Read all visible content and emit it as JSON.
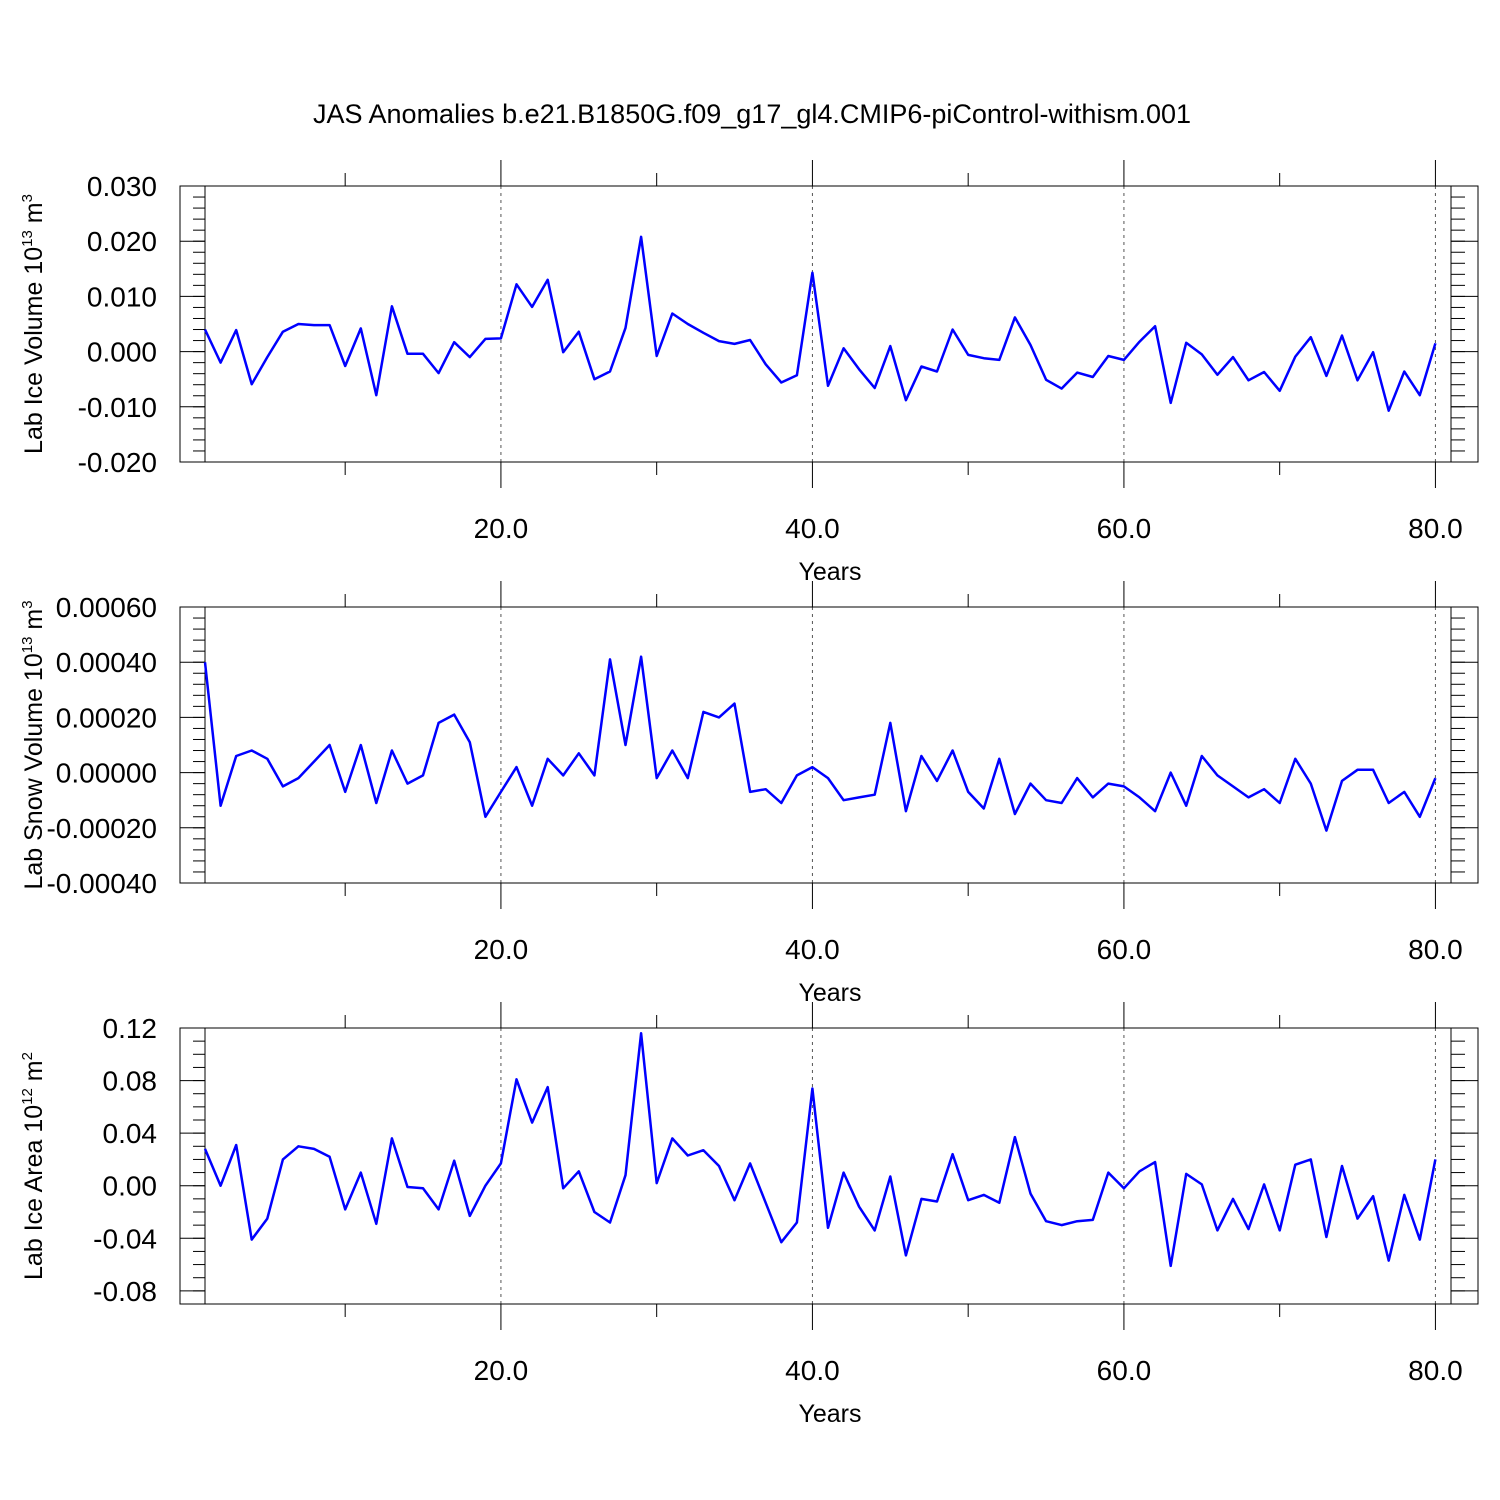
{
  "title": "JAS Anomalies b.e21.B1850G.f09_g17_gl4.CMIP6-piControl-withism.001",
  "colors": {
    "series": "#0000ff",
    "axes": "#000000",
    "grid": "#555555"
  },
  "chart_data": [
    {
      "type": "line",
      "ylabel": "Lab Ice Volume 10",
      "ylabel_exp": "13",
      "ylabel_unit": " m",
      "ylabel_unit_exp": "3",
      "xlabel": "Years",
      "xlim": [
        1,
        81
      ],
      "ylim": [
        -0.02,
        0.03
      ],
      "x_ticks": [
        20,
        40,
        60,
        80
      ],
      "x_tick_labels": [
        "20.0",
        "40.0",
        "60.0",
        "80.0"
      ],
      "y_ticks": [
        -0.02,
        -0.01,
        0.0,
        0.01,
        0.02,
        0.03
      ],
      "y_tick_labels": [
        "-0.020",
        "-0.010",
        "0.000",
        "0.010",
        "0.020",
        "0.030"
      ],
      "y_minor_step": 0.002,
      "grid": "x dashed at major ticks",
      "x_start": 1,
      "values": [
        0.004,
        -0.002,
        0.0039,
        -0.0059,
        -0.001,
        0.0036,
        0.005,
        0.0048,
        0.0048,
        -0.0026,
        0.0042,
        -0.0079,
        0.0082,
        -0.0004,
        -0.0004,
        -0.0039,
        0.0017,
        -0.001,
        0.0023,
        0.0024,
        0.0122,
        0.0081,
        0.013,
        -0.0001,
        0.0036,
        -0.005,
        -0.0036,
        0.0043,
        0.0208,
        -0.0008,
        0.0069,
        0.005,
        0.0034,
        0.0019,
        0.0014,
        0.0021,
        -0.0023,
        -0.0056,
        -0.0043,
        0.0143,
        -0.0062,
        0.0006,
        -0.0032,
        -0.0066,
        0.001,
        -0.0088,
        -0.0027,
        -0.0036,
        0.004,
        -0.0006,
        -0.0012,
        -0.0015,
        0.0062,
        0.0012,
        -0.0051,
        -0.0067,
        -0.0038,
        -0.0046,
        -0.0008,
        -0.0015,
        0.0018,
        0.0046,
        -0.0093,
        0.0016,
        -0.0005,
        -0.0042,
        -0.001,
        -0.0052,
        -0.0037,
        -0.0071,
        -0.0009,
        0.0026,
        -0.0044,
        0.0029,
        -0.0052,
        -0.0001,
        -0.0107,
        -0.0036,
        -0.0079,
        0.0015
      ]
    },
    {
      "type": "line",
      "ylabel": "Lab Snow Volume 10",
      "ylabel_exp": "13",
      "ylabel_unit": " m",
      "ylabel_unit_exp": "3",
      "xlabel": "Years",
      "xlim": [
        1,
        81
      ],
      "ylim": [
        -0.0004,
        0.0006
      ],
      "x_ticks": [
        20,
        40,
        60,
        80
      ],
      "x_tick_labels": [
        "20.0",
        "40.0",
        "60.0",
        "80.0"
      ],
      "y_ticks": [
        -0.0004,
        -0.0002,
        0.0,
        0.0002,
        0.0004,
        0.0006
      ],
      "y_tick_labels": [
        "-0.00040",
        "-0.00020",
        "0.00000",
        "0.00020",
        "0.00040",
        "0.00060"
      ],
      "y_minor_step": 4e-05,
      "grid": "x dashed at major ticks",
      "x_start": 1,
      "values": [
        0.0004,
        -0.00012,
        6e-05,
        8e-05,
        5e-05,
        -5e-05,
        -2e-05,
        4e-05,
        0.0001,
        -7e-05,
        0.0001,
        -0.00011,
        8e-05,
        -4e-05,
        -1e-05,
        0.00018,
        0.00021,
        0.00011,
        -0.00016,
        -7e-05,
        2e-05,
        -0.00012,
        5e-05,
        -1e-05,
        7e-05,
        -1e-05,
        0.00041,
        0.0001,
        0.00042,
        -2e-05,
        8e-05,
        -2e-05,
        0.00022,
        0.0002,
        0.00025,
        -7e-05,
        -6e-05,
        -0.00011,
        -1e-05,
        2e-05,
        -2e-05,
        -0.0001,
        -9e-05,
        -8e-05,
        0.00018,
        -0.00014,
        6e-05,
        -3e-05,
        8e-05,
        -7e-05,
        -0.00013,
        5e-05,
        -0.00015,
        -4e-05,
        -0.0001,
        -0.00011,
        -2e-05,
        -9e-05,
        -4e-05,
        -5e-05,
        -9e-05,
        -0.00014,
        0.0,
        -0.00012,
        6e-05,
        -1e-05,
        -5e-05,
        -9e-05,
        -6e-05,
        -0.00011,
        5e-05,
        -4e-05,
        -0.00021,
        -3e-05,
        1e-05,
        1e-05,
        -0.00011,
        -7e-05,
        -0.00016,
        -2e-05
      ]
    },
    {
      "type": "line",
      "ylabel": "Lab Ice Area 10",
      "ylabel_exp": "12",
      "ylabel_unit": " m",
      "ylabel_unit_exp": "2",
      "xlabel": "Years",
      "xlim": [
        1,
        81
      ],
      "ylim": [
        -0.09,
        0.12
      ],
      "x_ticks": [
        20,
        40,
        60,
        80
      ],
      "x_tick_labels": [
        "20.0",
        "40.0",
        "60.0",
        "80.0"
      ],
      "y_ticks": [
        -0.08,
        -0.04,
        0.0,
        0.04,
        0.08,
        0.12
      ],
      "y_tick_labels": [
        "-0.08",
        "-0.04",
        "0.00",
        "0.04",
        "0.08",
        "0.12"
      ],
      "y_minor_step": 0.01,
      "grid": "x dashed at major ticks",
      "x_start": 1,
      "values": [
        0.028,
        0.0,
        0.031,
        -0.041,
        -0.025,
        0.02,
        0.03,
        0.028,
        0.022,
        -0.018,
        0.01,
        -0.029,
        0.036,
        -0.001,
        -0.002,
        -0.018,
        0.019,
        -0.023,
        0.0,
        0.017,
        0.081,
        0.048,
        0.075,
        -0.002,
        0.011,
        -0.02,
        -0.028,
        0.008,
        0.116,
        0.002,
        0.036,
        0.023,
        0.027,
        0.015,
        -0.011,
        0.017,
        -0.013,
        -0.043,
        -0.028,
        0.074,
        -0.032,
        0.01,
        -0.016,
        -0.034,
        0.007,
        -0.053,
        -0.01,
        -0.012,
        0.024,
        -0.011,
        -0.007,
        -0.013,
        0.037,
        -0.006,
        -0.027,
        -0.03,
        -0.027,
        -0.026,
        0.01,
        -0.002,
        0.011,
        0.018,
        -0.061,
        0.009,
        0.001,
        -0.034,
        -0.01,
        -0.033,
        0.001,
        -0.034,
        0.016,
        0.02,
        -0.039,
        0.015,
        -0.025,
        -0.008,
        -0.057,
        -0.007,
        -0.041,
        0.02
      ]
    }
  ]
}
